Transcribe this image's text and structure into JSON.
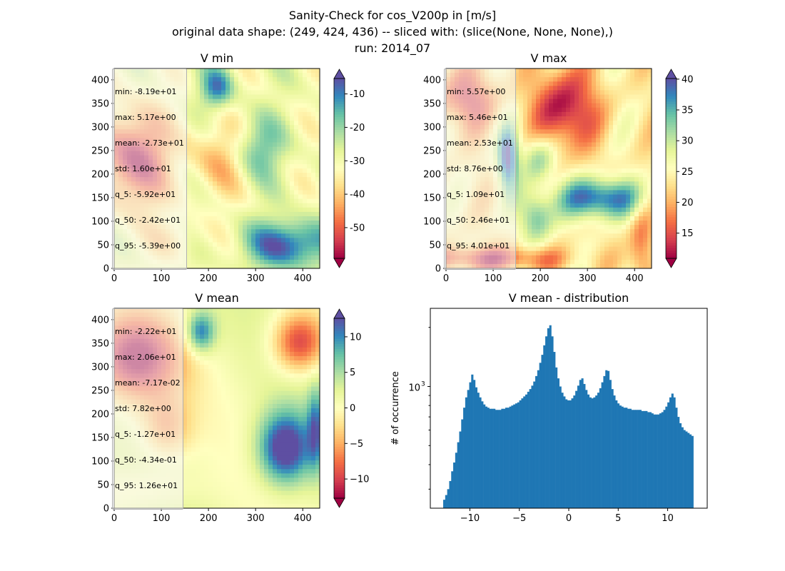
{
  "figure": {
    "title_lines": [
      "Sanity-Check for cos_V200p in [m/s]",
      "original data shape: (249, 424, 436) -- sliced with: (slice(None, None, None),)",
      "run: 2014_07"
    ]
  },
  "colors": {
    "hist_bar": "#1f77b4",
    "colormap": "Spectral",
    "spectral_stops": [
      "#9e0142",
      "#d53e4f",
      "#f46d43",
      "#fdae61",
      "#fee08b",
      "#ffffbf",
      "#e6f598",
      "#abdda4",
      "#66c2a5",
      "#3288bd",
      "#5e4fa2"
    ]
  },
  "chart_data": [
    {
      "type": "heatmap",
      "title": "V min",
      "x_ticks": [
        "0",
        "100",
        "200",
        "300",
        "400"
      ],
      "y_ticks": [
        "0",
        "50",
        "100",
        "150",
        "200",
        "250",
        "300",
        "350",
        "400"
      ],
      "xlim": [
        0,
        436
      ],
      "ylim": [
        0,
        424
      ],
      "colorbar": {
        "range": [
          -59.2,
          -5.39
        ],
        "ticks": [
          "-50",
          "-40",
          "-30",
          "-20",
          "-10"
        ],
        "tick_values": [
          -50,
          -40,
          -30,
          -20,
          -10
        ],
        "extend": "both"
      },
      "stats": [
        "min: -8.19e+01",
        "max: 5.17e+00",
        "mean: -2.73e+01",
        "std: 1.60e+01",
        "q_5: -5.92e+01",
        "q_50: -2.42e+01",
        "q_95: -5.39e+00"
      ]
    },
    {
      "type": "heatmap",
      "title": "V max",
      "x_ticks": [
        "0",
        "100",
        "200",
        "300",
        "400"
      ],
      "y_ticks": [
        "0",
        "50",
        "100",
        "150",
        "200",
        "250",
        "300",
        "350",
        "400"
      ],
      "xlim": [
        0,
        436
      ],
      "ylim": [
        0,
        424
      ],
      "colorbar": {
        "range": [
          10.9,
          40.1
        ],
        "ticks": [
          "15",
          "20",
          "25",
          "30",
          "35",
          "40"
        ],
        "tick_values": [
          15,
          20,
          25,
          30,
          35,
          40
        ],
        "extend": "both"
      },
      "stats": [
        "min: 5.57e+00",
        "max: 5.46e+01",
        "mean: 2.53e+01",
        "std: 8.76e+00",
        "q_5: 1.09e+01",
        "q_50: 2.46e+01",
        "q_95: 4.01e+01"
      ]
    },
    {
      "type": "heatmap",
      "title": "V mean",
      "x_ticks": [
        "0",
        "100",
        "200",
        "300",
        "400"
      ],
      "y_ticks": [
        "0",
        "50",
        "100",
        "150",
        "200",
        "250",
        "300",
        "350",
        "400"
      ],
      "xlim": [
        0,
        436
      ],
      "ylim": [
        0,
        424
      ],
      "colorbar": {
        "range": [
          -12.7,
          12.6
        ],
        "ticks": [
          "−10",
          "−5",
          "0",
          "5",
          "10"
        ],
        "tick_values": [
          -10,
          -5,
          0,
          5,
          10
        ],
        "extend": "both"
      },
      "stats": [
        "min: -2.22e+01",
        "max: 2.06e+01",
        "mean: -7.17e-02",
        "std: 7.82e+00",
        "q_5: -1.27e+01",
        "q_50: -4.34e-01",
        "q_95: 1.26e+01"
      ]
    },
    {
      "type": "bar",
      "title": "V mean - distribution",
      "ylabel": "# of occurrence",
      "yscale": "log",
      "ylim": [
        240,
        2500
      ],
      "xlim": [
        -14,
        14
      ],
      "x_ticks": [
        "−10",
        "−5",
        "0",
        "5",
        "10"
      ],
      "x_tick_values": [
        -10,
        -5,
        0,
        5,
        10
      ],
      "y_tick_label": "10",
      "y_tick_exponent": "3",
      "bin_range": [
        -12.7,
        12.6
      ],
      "counts": [
        265,
        280,
        300,
        330,
        370,
        410,
        460,
        520,
        590,
        680,
        780,
        880,
        960,
        1050,
        1150,
        1080,
        990,
        930,
        880,
        840,
        810,
        790,
        780,
        770,
        770,
        770,
        760,
        760,
        760,
        770,
        770,
        780,
        780,
        790,
        800,
        810,
        820,
        830,
        850,
        870,
        890,
        910,
        940,
        970,
        1010,
        1060,
        1130,
        1210,
        1320,
        1450,
        1620,
        1800,
        1980,
        2050,
        1800,
        1500,
        1250,
        1100,
        1000,
        930,
        890,
        860,
        850,
        850,
        870,
        900,
        950,
        1010,
        1080,
        1100,
        1030,
        960,
        910,
        880,
        870,
        880,
        900,
        930,
        980,
        1050,
        1130,
        1210,
        1200,
        1080,
        970,
        900,
        850,
        820,
        800,
        790,
        780,
        780,
        770,
        770,
        760,
        760,
        760,
        760,
        760,
        750,
        750,
        750,
        740,
        740,
        730,
        720,
        720,
        720,
        730,
        740,
        760,
        790,
        830,
        880,
        920,
        880,
        780,
        700,
        650,
        620,
        600,
        590,
        580,
        570,
        560
      ]
    }
  ]
}
